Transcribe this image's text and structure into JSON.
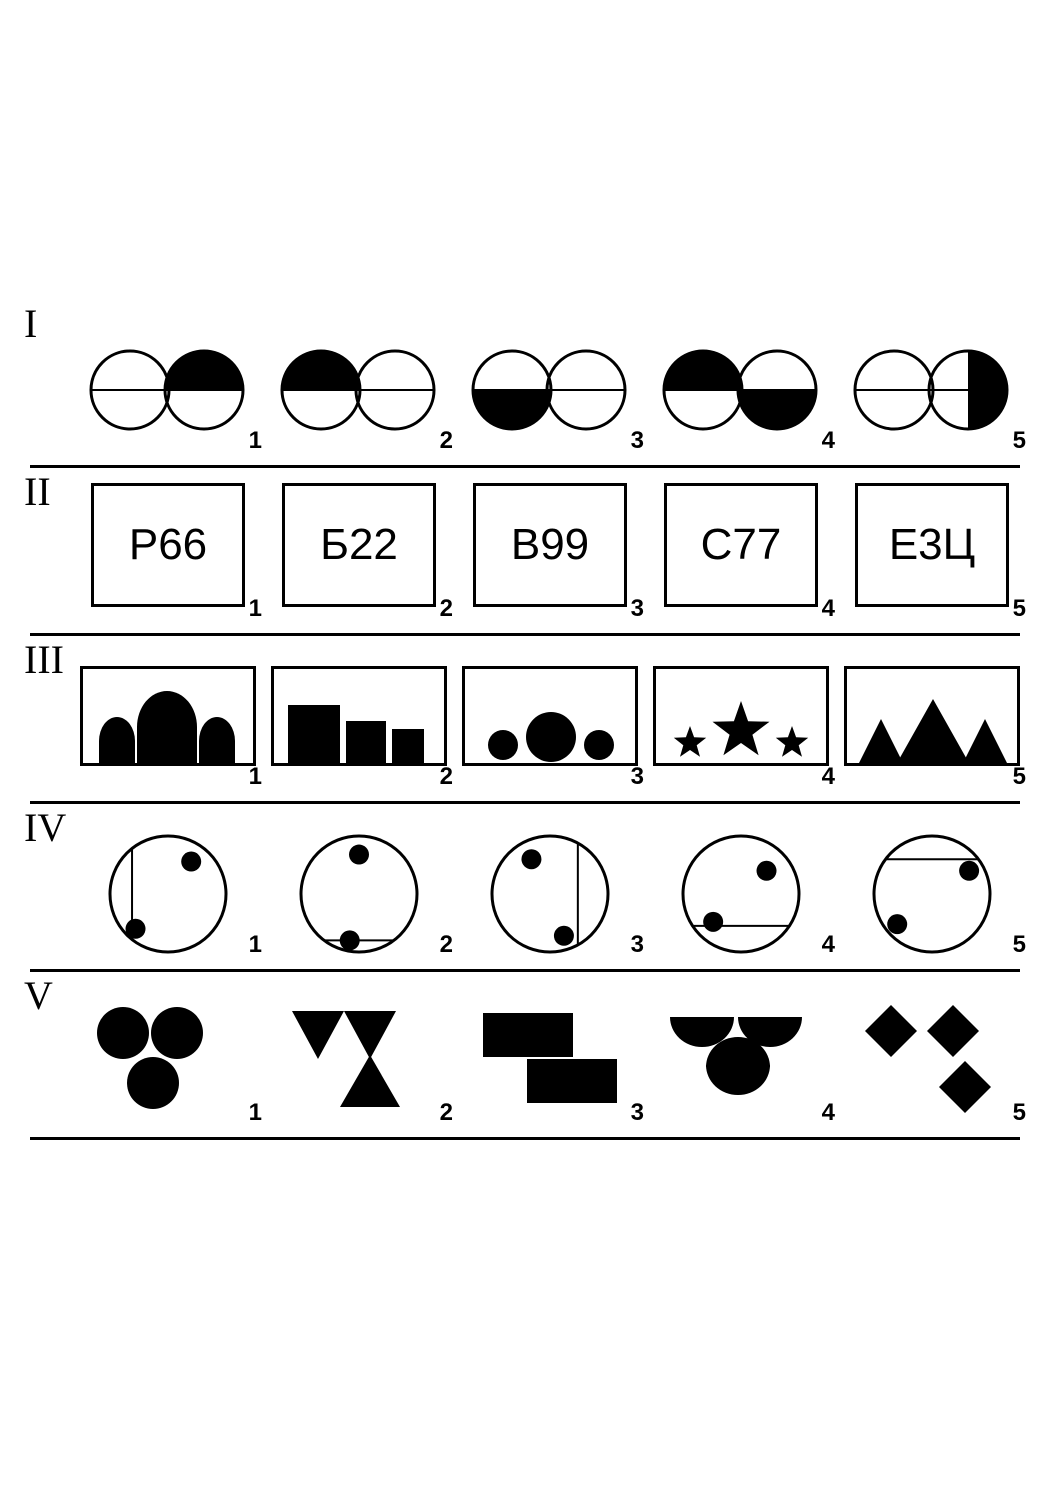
{
  "colors": {
    "bg": "#ffffff",
    "fg": "#000000",
    "stroke": "#000000"
  },
  "stroke_width": 3,
  "rows": [
    {
      "label": "I",
      "type": "circle-pair-halves",
      "items": [
        {
          "num": "1",
          "left": {
            "fill": "none"
          },
          "right": {
            "fill": "top"
          }
        },
        {
          "num": "2",
          "left": {
            "fill": "top"
          },
          "right": {
            "fill": "none"
          }
        },
        {
          "num": "3",
          "left": {
            "fill": "bottom"
          },
          "right": {
            "fill": "none"
          }
        },
        {
          "num": "4",
          "left": {
            "fill": "top"
          },
          "right": {
            "fill": "bottom"
          }
        },
        {
          "num": "5",
          "left": {
            "fill": "none"
          },
          "right": {
            "fill": "right"
          }
        }
      ]
    },
    {
      "label": "II",
      "type": "text-box",
      "items": [
        {
          "num": "1",
          "text": "Р66"
        },
        {
          "num": "2",
          "text": "Б22"
        },
        {
          "num": "3",
          "text": "В99"
        },
        {
          "num": "4",
          "text": "С77"
        },
        {
          "num": "5",
          "text": "Е3Ц"
        }
      ]
    },
    {
      "label": "III",
      "type": "rect-shapes",
      "items": [
        {
          "num": "1",
          "shape": "arch"
        },
        {
          "num": "2",
          "shape": "squares"
        },
        {
          "num": "3",
          "shape": "circles"
        },
        {
          "num": "4",
          "shape": "stars"
        },
        {
          "num": "5",
          "shape": "triangles"
        }
      ]
    },
    {
      "label": "IV",
      "type": "circle-dots-chord",
      "items": [
        {
          "num": "1",
          "chord": "v-left",
          "dots": [
            {
              "x": 0.7,
              "y": 0.22
            },
            {
              "x": 0.22,
              "y": 0.8
            }
          ]
        },
        {
          "num": "2",
          "chord": "h-bottom",
          "dots": [
            {
              "x": 0.5,
              "y": 0.16
            },
            {
              "x": 0.42,
              "y": 0.9
            }
          ]
        },
        {
          "num": "3",
          "chord": "v-right",
          "dots": [
            {
              "x": 0.34,
              "y": 0.2
            },
            {
              "x": 0.62,
              "y": 0.86
            }
          ]
        },
        {
          "num": "4",
          "chord": "h-bottom-low",
          "dots": [
            {
              "x": 0.72,
              "y": 0.3
            },
            {
              "x": 0.26,
              "y": 0.74
            }
          ]
        },
        {
          "num": "5",
          "chord": "h-top",
          "dots": [
            {
              "x": 0.82,
              "y": 0.3
            },
            {
              "x": 0.2,
              "y": 0.76
            }
          ]
        }
      ]
    },
    {
      "label": "V",
      "type": "free-shapes",
      "items": [
        {
          "num": "1",
          "shape": "three-circles"
        },
        {
          "num": "2",
          "shape": "tri-down-down-up"
        },
        {
          "num": "3",
          "shape": "two-rects"
        },
        {
          "num": "4",
          "shape": "semis"
        },
        {
          "num": "5",
          "shape": "three-diamonds"
        }
      ]
    }
  ]
}
